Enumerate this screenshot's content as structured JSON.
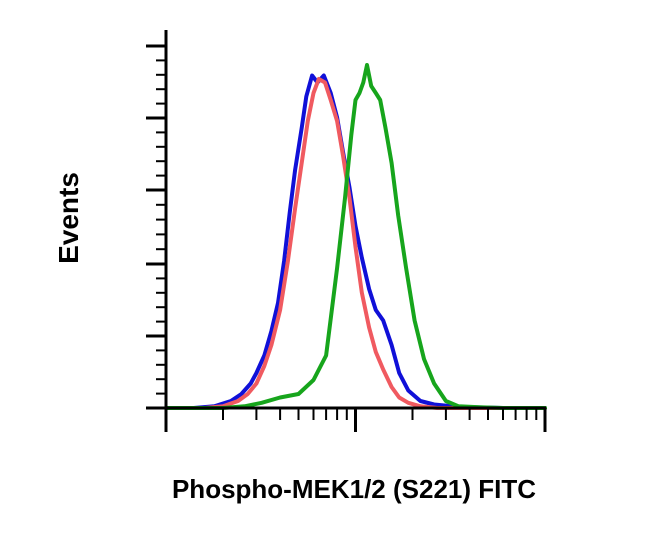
{
  "chart_data": {
    "type": "line",
    "xlabel": "Phospho-MEK1/2 (S221) FITC",
    "ylabel": "Events",
    "x_scale": "log",
    "x_major_ticks": [
      1,
      10,
      100
    ],
    "xlim": [
      1,
      100
    ],
    "ylim": [
      0,
      100
    ],
    "grid": false,
    "series": [
      {
        "color": "#1010d8",
        "x": [
          1.0,
          1.4,
          1.8,
          2.2,
          2.5,
          2.8,
          3.0,
          3.3,
          3.6,
          3.9,
          4.2,
          4.5,
          4.8,
          5.2,
          5.5,
          5.9,
          6.3,
          6.8,
          7.4,
          8.0,
          8.6,
          9.3,
          10.0,
          10.8,
          11.8,
          12.8,
          14.0,
          15.5,
          17.0,
          19.0,
          22.0,
          26.0,
          35.0,
          60.0,
          100.0
        ],
        "y": [
          0,
          0,
          0.5,
          2,
          4,
          7,
          10,
          15,
          22,
          30,
          42,
          56,
          68,
          80,
          89,
          95,
          93,
          95,
          90,
          83,
          73,
          63,
          52,
          43,
          34,
          28,
          25,
          18,
          10,
          5,
          2,
          1,
          0.3,
          0,
          0
        ]
      },
      {
        "color": "#f05a60",
        "x": [
          1.0,
          1.6,
          2.0,
          2.4,
          2.7,
          3.0,
          3.3,
          3.6,
          4.0,
          4.4,
          4.8,
          5.2,
          5.6,
          6.0,
          6.4,
          6.9,
          7.4,
          8.0,
          8.6,
          9.3,
          10.0,
          10.8,
          11.8,
          12.8,
          14.0,
          15.5,
          17.0,
          19.0,
          22.0,
          27.0,
          40.0,
          100.0
        ],
        "y": [
          0,
          0,
          0.5,
          2,
          4,
          7,
          12,
          18,
          28,
          42,
          57,
          70,
          82,
          90,
          94,
          93,
          88,
          82,
          72,
          60,
          46,
          33,
          23,
          16,
          11,
          6,
          3,
          1.5,
          0.5,
          0,
          0,
          0
        ]
      },
      {
        "color": "#17a51c",
        "x": [
          1.0,
          2.0,
          2.6,
          3.2,
          4.0,
          5.0,
          6.0,
          7.0,
          8.0,
          8.8,
          9.5,
          10.0,
          10.5,
          11.0,
          11.5,
          12.1,
          12.8,
          13.5,
          14.4,
          15.5,
          16.8,
          18.5,
          20.5,
          23.0,
          26.0,
          30.0,
          35.0,
          45.0,
          60.0,
          100.0
        ],
        "y": [
          0,
          0,
          0.5,
          1.5,
          3,
          4,
          8,
          15,
          40,
          60,
          78,
          88,
          90,
          93,
          98,
          92,
          90,
          88,
          80,
          70,
          55,
          40,
          25,
          14,
          7,
          2,
          0.5,
          0.2,
          0,
          0
        ]
      }
    ]
  }
}
